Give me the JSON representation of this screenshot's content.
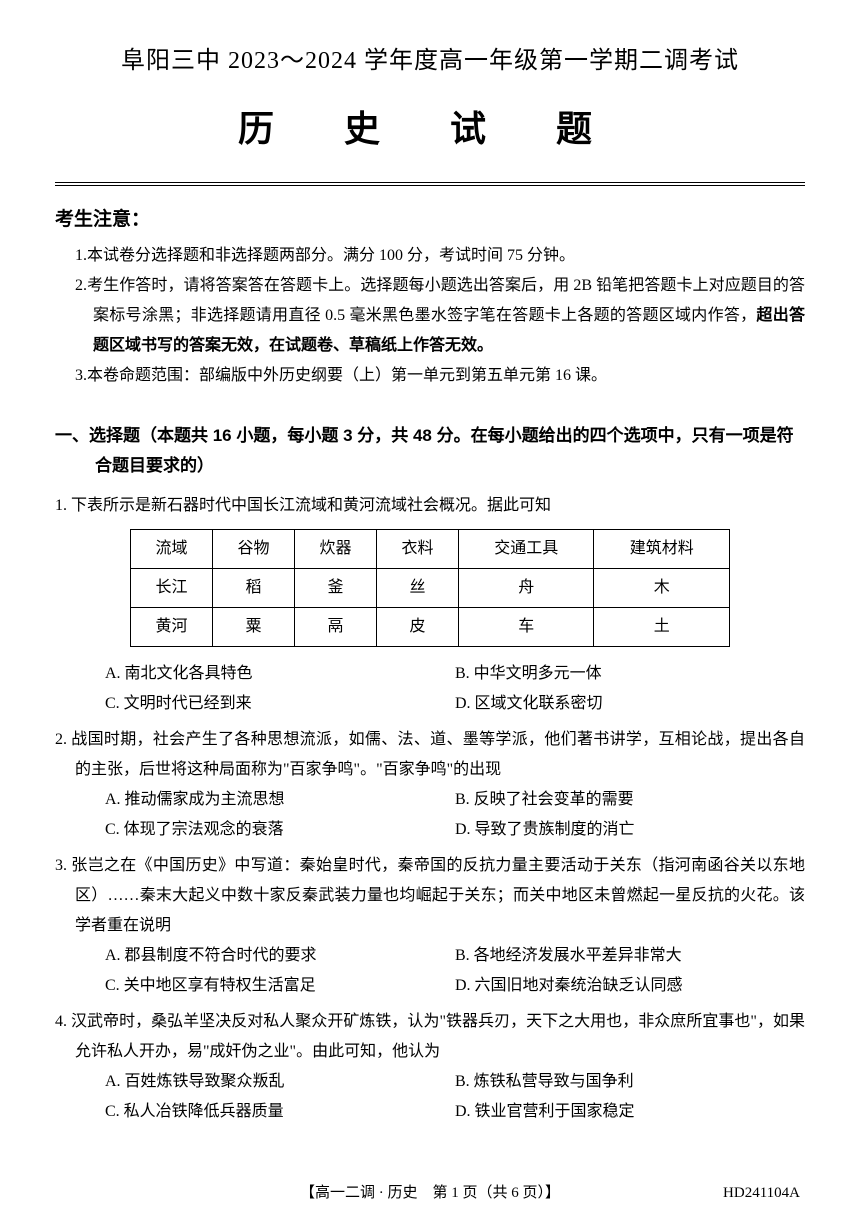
{
  "header": {
    "school_line": "阜阳三中 2023～2024 学年度高一年级第一学期二调考试",
    "main_title": "历 史 试 题"
  },
  "notice": {
    "heading": "考生注意：",
    "items": [
      {
        "num": "1.",
        "text": "本试卷分选择题和非选择题两部分。满分 100 分，考试时间 75 分钟。"
      },
      {
        "num": "2.",
        "text_a": "考生作答时，请将答案答在答题卡上。选择题每小题选出答案后，用 2B 铅笔把答题卡上对应题目的答案标号涂黑；非选择题请用直径 0.5 毫米黑色墨水签字笔在答题卡上各题的答题区域内作答，",
        "text_bold": "超出答题区域书写的答案无效，在试题卷、草稿纸上作答无效。"
      },
      {
        "num": "3.",
        "text": "本卷命题范围：部编版中外历史纲要（上）第一单元到第五单元第 16 课。"
      }
    ]
  },
  "section1": {
    "heading": "一、选择题（本题共 16 小题，每小题 3 分，共 48 分。在每小题给出的四个选项中，只有一项是符合题目要求的）"
  },
  "q1": {
    "stem": "1. 下表所示是新石器时代中国长江流域和黄河流域社会概况。据此可知",
    "table": {
      "columns": [
        "流域",
        "谷物",
        "炊器",
        "衣料",
        "交通工具",
        "建筑材料"
      ],
      "rows": [
        [
          "长江",
          "稻",
          "釜",
          "丝",
          "舟",
          "木"
        ],
        [
          "黄河",
          "粟",
          "鬲",
          "皮",
          "车",
          "土"
        ]
      ]
    },
    "opts": {
      "a": "A. 南北文化各具特色",
      "b": "B. 中华文明多元一体",
      "c": "C. 文明时代已经到来",
      "d": "D. 区域文化联系密切"
    }
  },
  "q2": {
    "stem": "2. 战国时期，社会产生了各种思想流派，如儒、法、道、墨等学派，他们著书讲学，互相论战，提出各自的主张，后世将这种局面称为\"百家争鸣\"。\"百家争鸣\"的出现",
    "opts": {
      "a": "A. 推动儒家成为主流思想",
      "b": "B. 反映了社会变革的需要",
      "c": "C. 体现了宗法观念的衰落",
      "d": "D. 导致了贵族制度的消亡"
    }
  },
  "q3": {
    "stem": "3. 张岂之在《中国历史》中写道：秦始皇时代，秦帝国的反抗力量主要活动于关东（指河南函谷关以东地区）……秦末大起义中数十家反秦武装力量也均崛起于关东；而关中地区未曾燃起一星反抗的火花。该学者重在说明",
    "opts": {
      "a": "A. 郡县制度不符合时代的要求",
      "b": "B. 各地经济发展水平差异非常大",
      "c": "C. 关中地区享有特权生活富足",
      "d": "D. 六国旧地对秦统治缺乏认同感"
    }
  },
  "q4": {
    "stem": "4. 汉武帝时，桑弘羊坚决反对私人聚众开矿炼铁，认为\"铁器兵刃，天下之大用也，非众庶所宜事也\"，如果允许私人开办，易\"成奸伪之业\"。由此可知，他认为",
    "opts": {
      "a": "A. 百姓炼铁导致聚众叛乱",
      "b": "B. 炼铁私营导致与国争利",
      "c": "C. 私人冶铁降低兵器质量",
      "d": "D. 铁业官营利于国家稳定"
    }
  },
  "footer": {
    "center": "【高一二调 · 历史　第 1 页（共 6 页）】",
    "code": "HD241104A"
  }
}
